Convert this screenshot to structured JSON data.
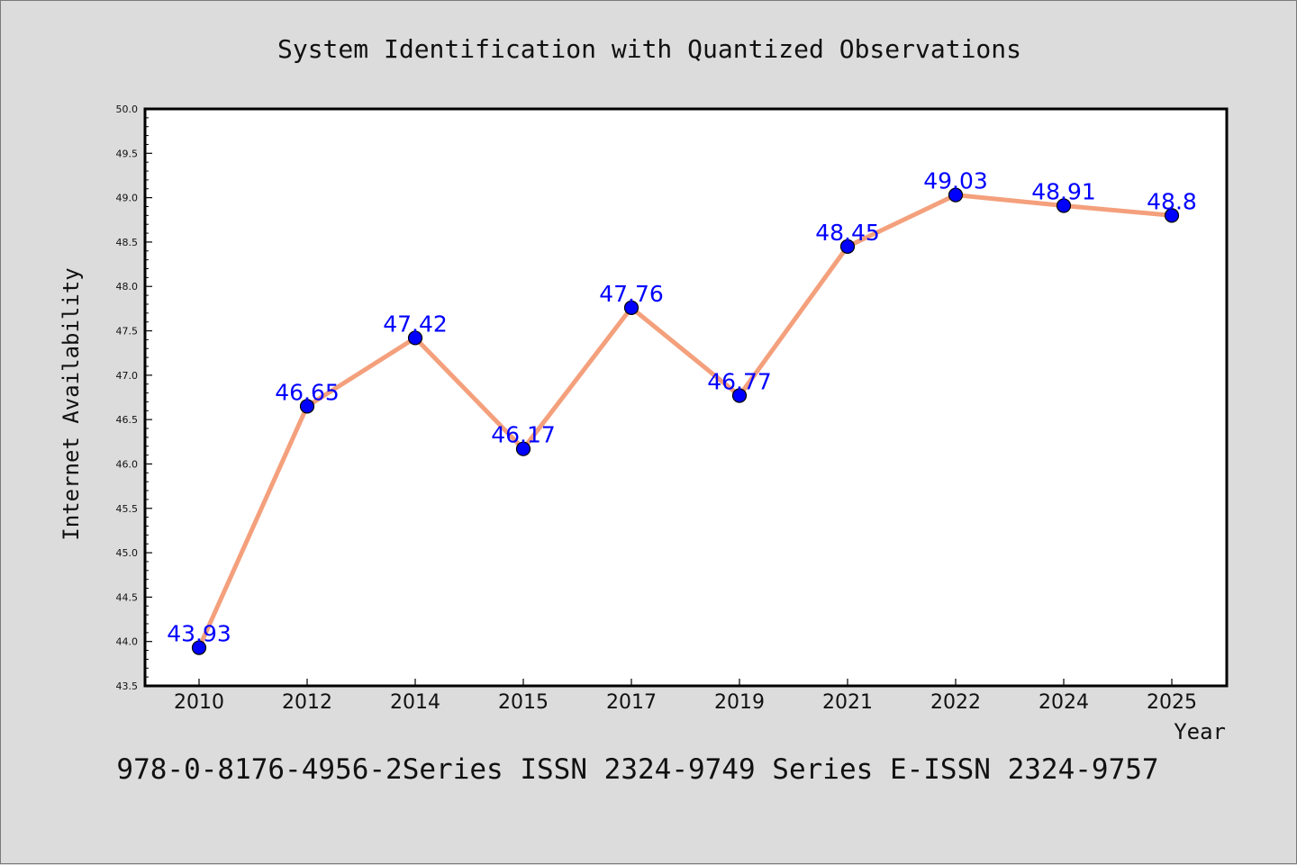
{
  "chart_data": {
    "type": "line",
    "title": "System Identification with Quantized Observations",
    "xlabel": "Year",
    "ylabel": "Internet Availability",
    "categories": [
      "2010",
      "2012",
      "2014",
      "2015",
      "2017",
      "2019",
      "2021",
      "2022",
      "2024",
      "2025"
    ],
    "series": [
      {
        "values": [
          43.93,
          46.65,
          47.42,
          46.17,
          47.76,
          46.77,
          48.45,
          49.03,
          48.91,
          48.8
        ],
        "labels": [
          "43.93",
          "46.65",
          "47.42",
          "46.17",
          "47.76",
          "46.77",
          "48.45",
          "49.03",
          "48.91",
          "48.8"
        ]
      }
    ],
    "ylim": [
      43.5,
      50.0
    ],
    "yticks": [
      "43.5",
      "44.0",
      "44.5",
      "45.0",
      "45.5",
      "46.0",
      "46.5",
      "47.0",
      "47.5",
      "48.0",
      "48.5",
      "49.0",
      "49.5",
      "50.0"
    ],
    "grid": false,
    "footer": "978-0-8176-4956-2Series ISSN 2324-9749 Series E-ISSN 2324-9757",
    "colors": {
      "background": "#dcdcdc",
      "plot_background": "#ffffff",
      "line": "#f4a07c",
      "marker": "#0000ff",
      "data_label": "#0000ff",
      "text": "#111111"
    }
  }
}
